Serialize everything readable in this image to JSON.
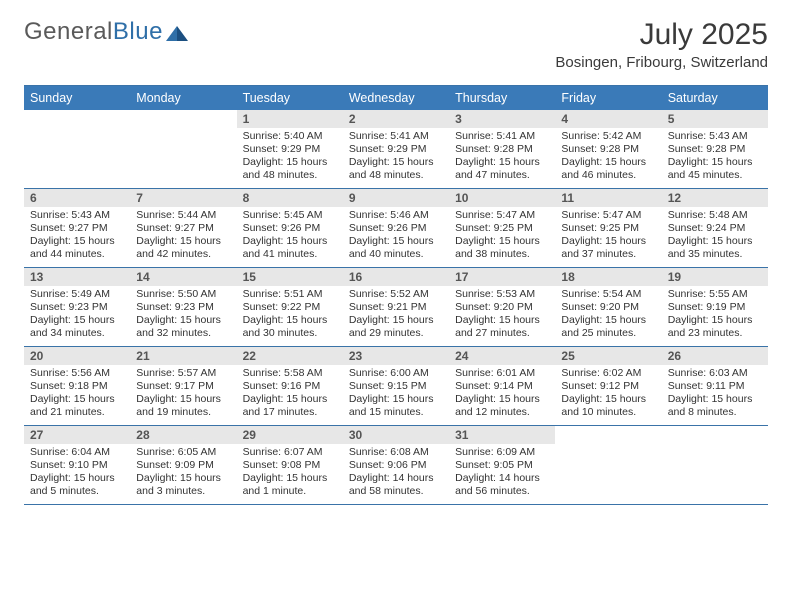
{
  "brand": {
    "part1": "General",
    "part2": "Blue"
  },
  "title": "July 2025",
  "location": "Bosingen, Fribourg, Switzerland",
  "colors": {
    "header_bar": "#3a7ab8",
    "week_divider": "#3a73a8",
    "daynum_bg": "#e7e7e7",
    "text": "#333333",
    "title_text": "#3a3a3a",
    "logo_gray": "#5a5a5a",
    "logo_blue": "#2f6fa8",
    "background": "#ffffff"
  },
  "weekdays": [
    "Sunday",
    "Monday",
    "Tuesday",
    "Wednesday",
    "Thursday",
    "Friday",
    "Saturday"
  ],
  "weeks": [
    [
      {
        "empty": true
      },
      {
        "empty": true
      },
      {
        "num": "1",
        "sunrise": "Sunrise: 5:40 AM",
        "sunset": "Sunset: 9:29 PM",
        "dl1": "Daylight: 15 hours",
        "dl2": "and 48 minutes."
      },
      {
        "num": "2",
        "sunrise": "Sunrise: 5:41 AM",
        "sunset": "Sunset: 9:29 PM",
        "dl1": "Daylight: 15 hours",
        "dl2": "and 48 minutes."
      },
      {
        "num": "3",
        "sunrise": "Sunrise: 5:41 AM",
        "sunset": "Sunset: 9:28 PM",
        "dl1": "Daylight: 15 hours",
        "dl2": "and 47 minutes."
      },
      {
        "num": "4",
        "sunrise": "Sunrise: 5:42 AM",
        "sunset": "Sunset: 9:28 PM",
        "dl1": "Daylight: 15 hours",
        "dl2": "and 46 minutes."
      },
      {
        "num": "5",
        "sunrise": "Sunrise: 5:43 AM",
        "sunset": "Sunset: 9:28 PM",
        "dl1": "Daylight: 15 hours",
        "dl2": "and 45 minutes."
      }
    ],
    [
      {
        "num": "6",
        "sunrise": "Sunrise: 5:43 AM",
        "sunset": "Sunset: 9:27 PM",
        "dl1": "Daylight: 15 hours",
        "dl2": "and 44 minutes."
      },
      {
        "num": "7",
        "sunrise": "Sunrise: 5:44 AM",
        "sunset": "Sunset: 9:27 PM",
        "dl1": "Daylight: 15 hours",
        "dl2": "and 42 minutes."
      },
      {
        "num": "8",
        "sunrise": "Sunrise: 5:45 AM",
        "sunset": "Sunset: 9:26 PM",
        "dl1": "Daylight: 15 hours",
        "dl2": "and 41 minutes."
      },
      {
        "num": "9",
        "sunrise": "Sunrise: 5:46 AM",
        "sunset": "Sunset: 9:26 PM",
        "dl1": "Daylight: 15 hours",
        "dl2": "and 40 minutes."
      },
      {
        "num": "10",
        "sunrise": "Sunrise: 5:47 AM",
        "sunset": "Sunset: 9:25 PM",
        "dl1": "Daylight: 15 hours",
        "dl2": "and 38 minutes."
      },
      {
        "num": "11",
        "sunrise": "Sunrise: 5:47 AM",
        "sunset": "Sunset: 9:25 PM",
        "dl1": "Daylight: 15 hours",
        "dl2": "and 37 minutes."
      },
      {
        "num": "12",
        "sunrise": "Sunrise: 5:48 AM",
        "sunset": "Sunset: 9:24 PM",
        "dl1": "Daylight: 15 hours",
        "dl2": "and 35 minutes."
      }
    ],
    [
      {
        "num": "13",
        "sunrise": "Sunrise: 5:49 AM",
        "sunset": "Sunset: 9:23 PM",
        "dl1": "Daylight: 15 hours",
        "dl2": "and 34 minutes."
      },
      {
        "num": "14",
        "sunrise": "Sunrise: 5:50 AM",
        "sunset": "Sunset: 9:23 PM",
        "dl1": "Daylight: 15 hours",
        "dl2": "and 32 minutes."
      },
      {
        "num": "15",
        "sunrise": "Sunrise: 5:51 AM",
        "sunset": "Sunset: 9:22 PM",
        "dl1": "Daylight: 15 hours",
        "dl2": "and 30 minutes."
      },
      {
        "num": "16",
        "sunrise": "Sunrise: 5:52 AM",
        "sunset": "Sunset: 9:21 PM",
        "dl1": "Daylight: 15 hours",
        "dl2": "and 29 minutes."
      },
      {
        "num": "17",
        "sunrise": "Sunrise: 5:53 AM",
        "sunset": "Sunset: 9:20 PM",
        "dl1": "Daylight: 15 hours",
        "dl2": "and 27 minutes."
      },
      {
        "num": "18",
        "sunrise": "Sunrise: 5:54 AM",
        "sunset": "Sunset: 9:20 PM",
        "dl1": "Daylight: 15 hours",
        "dl2": "and 25 minutes."
      },
      {
        "num": "19",
        "sunrise": "Sunrise: 5:55 AM",
        "sunset": "Sunset: 9:19 PM",
        "dl1": "Daylight: 15 hours",
        "dl2": "and 23 minutes."
      }
    ],
    [
      {
        "num": "20",
        "sunrise": "Sunrise: 5:56 AM",
        "sunset": "Sunset: 9:18 PM",
        "dl1": "Daylight: 15 hours",
        "dl2": "and 21 minutes."
      },
      {
        "num": "21",
        "sunrise": "Sunrise: 5:57 AM",
        "sunset": "Sunset: 9:17 PM",
        "dl1": "Daylight: 15 hours",
        "dl2": "and 19 minutes."
      },
      {
        "num": "22",
        "sunrise": "Sunrise: 5:58 AM",
        "sunset": "Sunset: 9:16 PM",
        "dl1": "Daylight: 15 hours",
        "dl2": "and 17 minutes."
      },
      {
        "num": "23",
        "sunrise": "Sunrise: 6:00 AM",
        "sunset": "Sunset: 9:15 PM",
        "dl1": "Daylight: 15 hours",
        "dl2": "and 15 minutes."
      },
      {
        "num": "24",
        "sunrise": "Sunrise: 6:01 AM",
        "sunset": "Sunset: 9:14 PM",
        "dl1": "Daylight: 15 hours",
        "dl2": "and 12 minutes."
      },
      {
        "num": "25",
        "sunrise": "Sunrise: 6:02 AM",
        "sunset": "Sunset: 9:12 PM",
        "dl1": "Daylight: 15 hours",
        "dl2": "and 10 minutes."
      },
      {
        "num": "26",
        "sunrise": "Sunrise: 6:03 AM",
        "sunset": "Sunset: 9:11 PM",
        "dl1": "Daylight: 15 hours",
        "dl2": "and 8 minutes."
      }
    ],
    [
      {
        "num": "27",
        "sunrise": "Sunrise: 6:04 AM",
        "sunset": "Sunset: 9:10 PM",
        "dl1": "Daylight: 15 hours",
        "dl2": "and 5 minutes."
      },
      {
        "num": "28",
        "sunrise": "Sunrise: 6:05 AM",
        "sunset": "Sunset: 9:09 PM",
        "dl1": "Daylight: 15 hours",
        "dl2": "and 3 minutes."
      },
      {
        "num": "29",
        "sunrise": "Sunrise: 6:07 AM",
        "sunset": "Sunset: 9:08 PM",
        "dl1": "Daylight: 15 hours",
        "dl2": "and 1 minute."
      },
      {
        "num": "30",
        "sunrise": "Sunrise: 6:08 AM",
        "sunset": "Sunset: 9:06 PM",
        "dl1": "Daylight: 14 hours",
        "dl2": "and 58 minutes."
      },
      {
        "num": "31",
        "sunrise": "Sunrise: 6:09 AM",
        "sunset": "Sunset: 9:05 PM",
        "dl1": "Daylight: 14 hours",
        "dl2": "and 56 minutes."
      },
      {
        "empty": true
      },
      {
        "empty": true
      }
    ]
  ]
}
